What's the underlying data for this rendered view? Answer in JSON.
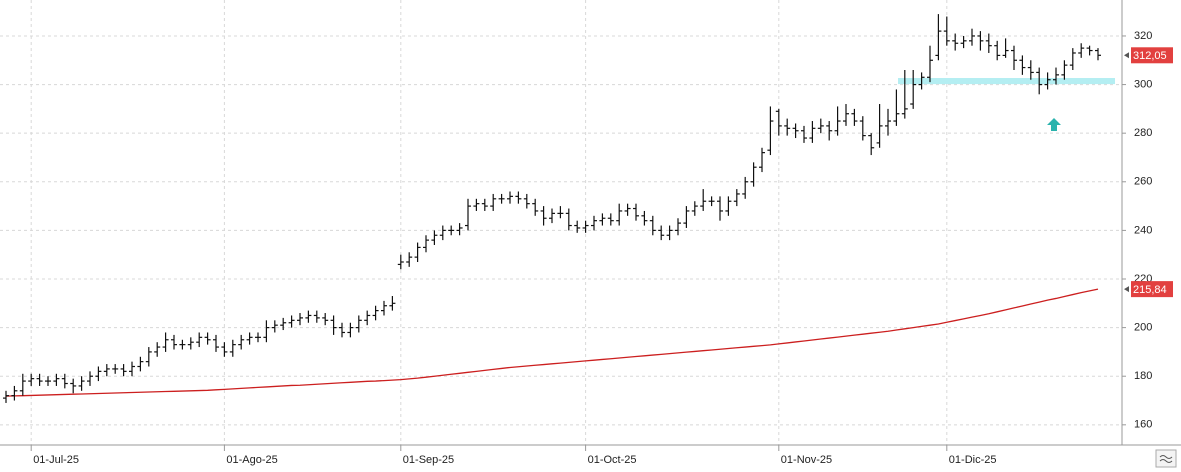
{
  "chart_data": {
    "type": "ohlc",
    "categories": [
      null,
      null,
      null,
      "01-Jul-25",
      null,
      null,
      null,
      null,
      null,
      null,
      null,
      null,
      null,
      null,
      null,
      null,
      null,
      null,
      null,
      null,
      null,
      null,
      null,
      null,
      null,
      null,
      "01-Ago-25",
      null,
      null,
      null,
      null,
      null,
      null,
      null,
      null,
      null,
      null,
      null,
      null,
      null,
      null,
      null,
      null,
      null,
      null,
      null,
      null,
      "01-Sep-25",
      null,
      null,
      null,
      null,
      null,
      null,
      null,
      null,
      null,
      null,
      null,
      null,
      null,
      null,
      null,
      null,
      null,
      null,
      null,
      null,
      null,
      "01-Oct-25",
      null,
      null,
      null,
      null,
      null,
      null,
      null,
      null,
      null,
      null,
      null,
      null,
      null,
      null,
      null,
      null,
      null,
      null,
      null,
      null,
      null,
      null,
      "01-Nov-25",
      null,
      null,
      null,
      null,
      null,
      null,
      null,
      null,
      null,
      null,
      null,
      null,
      null,
      null,
      null,
      null,
      null,
      null,
      null,
      "01-Dic-25",
      null,
      null,
      null,
      null,
      null,
      null,
      null,
      null,
      null,
      null,
      null,
      null,
      null,
      null,
      null,
      null,
      null,
      null
    ],
    "open": [
      171,
      172,
      174,
      178,
      179,
      178,
      178,
      179,
      177,
      176,
      178,
      180,
      182,
      183,
      183,
      182,
      184,
      186,
      190,
      192,
      195,
      193,
      193,
      194,
      196,
      195,
      192,
      190,
      193,
      195,
      196,
      196,
      200,
      201,
      202,
      203,
      204,
      205,
      204,
      203,
      200,
      198,
      200,
      203,
      205,
      207,
      209,
      226,
      227,
      229,
      233,
      236,
      238,
      240,
      240,
      242,
      250,
      251,
      250,
      253,
      253,
      254,
      253,
      251,
      248,
      245,
      247,
      247,
      242,
      241,
      242,
      244,
      245,
      244,
      248,
      249,
      246,
      244,
      240,
      238,
      240,
      243,
      248,
      250,
      252,
      252,
      248,
      252,
      255,
      260,
      266,
      273,
      289,
      283,
      282,
      281,
      278,
      282,
      283,
      281,
      285,
      288,
      285,
      279,
      276,
      283,
      285,
      288,
      292,
      300,
      303,
      312,
      322,
      318,
      317,
      318,
      320,
      318,
      316,
      312,
      314,
      310,
      307,
      305,
      300,
      302,
      304,
      308,
      313,
      315,
      314
    ],
    "high": [
      174,
      176,
      181,
      181,
      181,
      180,
      181,
      181,
      179,
      180,
      182,
      184,
      185,
      185,
      185,
      186,
      188,
      192,
      194,
      198,
      197,
      195,
      196,
      198,
      198,
      197,
      194,
      195,
      197,
      198,
      198,
      203,
      203,
      204,
      205,
      206,
      207,
      207,
      206,
      205,
      202,
      202,
      205,
      207,
      209,
      211,
      213,
      230,
      231,
      235,
      238,
      240,
      242,
      242,
      243,
      253,
      253,
      253,
      255,
      255,
      256,
      256,
      255,
      253,
      250,
      249,
      250,
      249,
      244,
      244,
      246,
      247,
      247,
      251,
      251,
      251,
      248,
      246,
      242,
      242,
      245,
      250,
      252,
      257,
      254,
      254,
      254,
      257,
      262,
      268,
      274,
      291,
      290,
      286,
      284,
      283,
      285,
      286,
      285,
      291,
      292,
      290,
      287,
      280,
      292,
      290,
      298,
      306,
      306,
      305,
      316,
      329,
      328,
      321,
      320,
      323,
      322,
      321,
      318,
      319,
      316,
      312,
      310,
      307,
      305,
      307,
      310,
      315,
      317,
      316,
      315
    ],
    "low": [
      169,
      170,
      172,
      176,
      176,
      176,
      176,
      175,
      173,
      174,
      176,
      178,
      180,
      181,
      180,
      180,
      182,
      184,
      188,
      190,
      191,
      191,
      191,
      192,
      193,
      190,
      188,
      188,
      191,
      193,
      194,
      194,
      198,
      199,
      200,
      201,
      202,
      202,
      201,
      197,
      196,
      196,
      198,
      201,
      203,
      205,
      207,
      224,
      225,
      227,
      231,
      234,
      236,
      238,
      238,
      240,
      248,
      248,
      248,
      251,
      251,
      251,
      249,
      246,
      242,
      243,
      245,
      240,
      239,
      239,
      240,
      242,
      242,
      242,
      246,
      244,
      242,
      238,
      236,
      236,
      238,
      241,
      246,
      248,
      250,
      244,
      246,
      250,
      253,
      258,
      264,
      271,
      279,
      279,
      278,
      276,
      276,
      280,
      277,
      279,
      283,
      283,
      277,
      271,
      274,
      279,
      283,
      286,
      290,
      298,
      301,
      310,
      316,
      314,
      315,
      316,
      314,
      313,
      310,
      311,
      306,
      304,
      302,
      296,
      298,
      300,
      302,
      306,
      311,
      312,
      310
    ],
    "close": [
      172,
      174,
      178,
      179,
      178,
      178,
      179,
      177,
      176,
      178,
      180,
      182,
      183,
      183,
      182,
      184,
      186,
      190,
      192,
      195,
      193,
      193,
      194,
      196,
      195,
      192,
      190,
      193,
      195,
      196,
      196,
      200,
      201,
      202,
      203,
      204,
      205,
      204,
      203,
      200,
      198,
      200,
      203,
      205,
      207,
      209,
      210,
      227,
      229,
      233,
      236,
      238,
      240,
      240,
      241,
      250,
      251,
      250,
      253,
      253,
      254,
      253,
      251,
      248,
      245,
      247,
      247,
      242,
      241,
      242,
      244,
      245,
      244,
      248,
      249,
      246,
      244,
      240,
      238,
      240,
      243,
      248,
      250,
      252,
      252,
      248,
      252,
      255,
      260,
      266,
      272,
      285,
      283,
      282,
      281,
      278,
      282,
      283,
      281,
      285,
      288,
      285,
      279,
      274,
      283,
      285,
      288,
      290,
      300,
      303,
      310,
      322,
      318,
      317,
      318,
      320,
      318,
      316,
      312,
      314,
      310,
      307,
      305,
      300,
      302,
      304,
      308,
      313,
      315,
      314,
      312.05
    ],
    "bar_color": "#111111",
    "ma": {
      "color": "#cc1f1f",
      "values": [
        171.8,
        171.9,
        172.0,
        172.1,
        172.2,
        172.3,
        172.4,
        172.5,
        172.6,
        172.7,
        172.8,
        172.9,
        173.0,
        173.1,
        173.2,
        173.3,
        173.4,
        173.5,
        173.6,
        173.7,
        173.8,
        173.9,
        174.0,
        174.1,
        174.2,
        174.4,
        174.6,
        174.8,
        175.0,
        175.2,
        175.4,
        175.6,
        175.8,
        176.0,
        176.2,
        176.3,
        176.5,
        176.7,
        176.9,
        177.1,
        177.3,
        177.5,
        177.7,
        177.9,
        178.0,
        178.2,
        178.4,
        178.6,
        178.9,
        179.2,
        179.6,
        180.0,
        180.4,
        180.8,
        181.2,
        181.6,
        182.0,
        182.4,
        182.8,
        183.2,
        183.6,
        183.9,
        184.2,
        184.5,
        184.8,
        185.1,
        185.4,
        185.7,
        186.0,
        186.3,
        186.6,
        186.9,
        187.2,
        187.5,
        187.8,
        188.1,
        188.4,
        188.7,
        189.0,
        189.3,
        189.6,
        189.9,
        190.2,
        190.5,
        190.8,
        191.1,
        191.4,
        191.7,
        192.0,
        192.3,
        192.6,
        192.9,
        193.3,
        193.7,
        194.1,
        194.5,
        194.9,
        195.3,
        195.7,
        196.1,
        196.5,
        196.9,
        197.3,
        197.7,
        198.1,
        198.5,
        199.0,
        199.5,
        200.0,
        200.5,
        201.0,
        201.5,
        202.2,
        202.9,
        203.6,
        204.3,
        205.0,
        205.7,
        206.5,
        207.3,
        208.1,
        208.9,
        209.7,
        210.5,
        211.3,
        212.0,
        212.8,
        213.6,
        214.4,
        215.1,
        215.84
      ]
    },
    "ylim": [
      151.7,
      334.8
    ],
    "yticks": [
      160,
      180,
      200,
      220,
      240,
      260,
      280,
      300,
      320
    ],
    "grid": true,
    "zone": {
      "from": 300.2,
      "to": 302.7,
      "color": "#b4eef2"
    },
    "price_tags": [
      {
        "value": 312.05,
        "label": "312,05",
        "color": "#e2403f"
      },
      {
        "value": 215.84,
        "label": "215,84",
        "color": "#e2403f"
      }
    ]
  }
}
